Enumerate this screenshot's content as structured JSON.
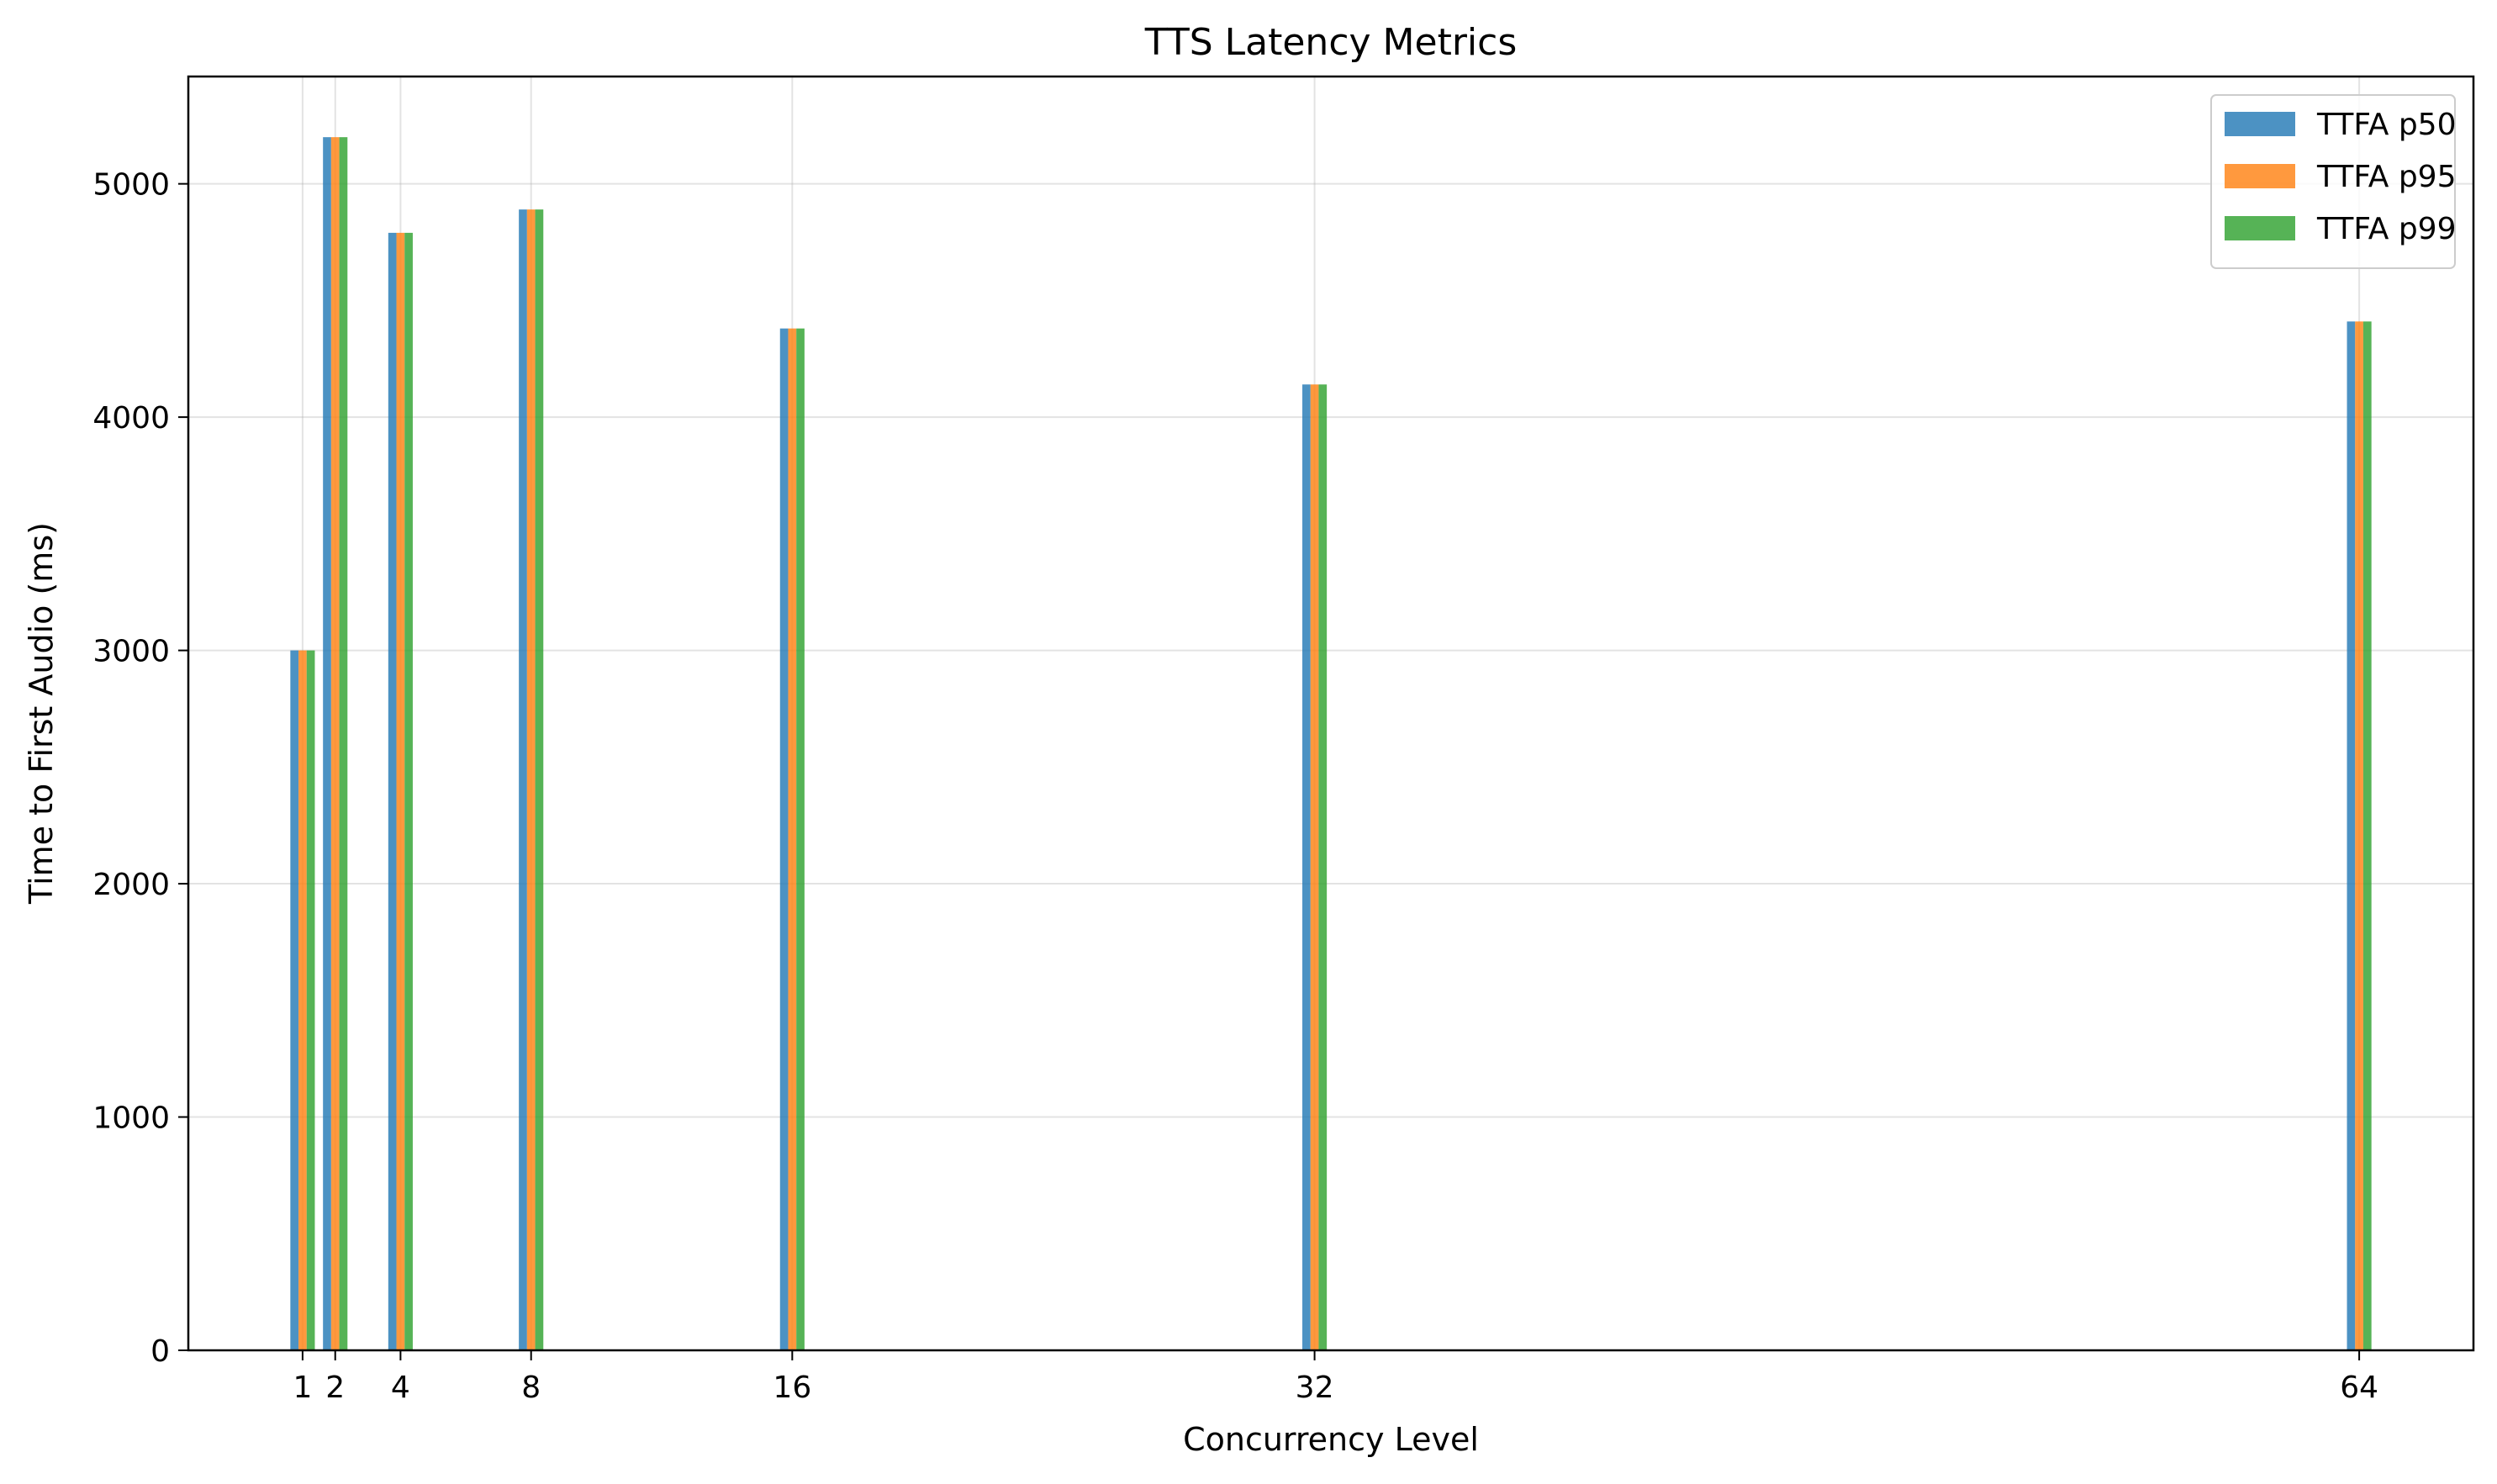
{
  "chart_data": {
    "type": "bar",
    "title": "TTS Latency Metrics",
    "xlabel": "Concurrency Level",
    "ylabel": "Time to First Audio (ms)",
    "x": [
      1,
      2,
      4,
      8,
      16,
      32,
      64
    ],
    "xticks": [
      1,
      2,
      4,
      8,
      16,
      32,
      64
    ],
    "xlim": [
      -2.5,
      67.5
    ],
    "ylim": [
      0,
      5460
    ],
    "yticks": [
      0,
      1000,
      2000,
      3000,
      4000,
      5000
    ],
    "grid": true,
    "legend_position": "top-right",
    "series": [
      {
        "name": "TTFA p50",
        "color": "#1f77b4",
        "values": [
          3000,
          5200,
          4790,
          4890,
          4380,
          4140,
          4410
        ]
      },
      {
        "name": "TTFA p95",
        "color": "#ff7f0e",
        "values": [
          3000,
          5200,
          4790,
          4890,
          4380,
          4140,
          4410
        ]
      },
      {
        "name": "TTFA p99",
        "color": "#2ca02c",
        "values": [
          3000,
          5200,
          4790,
          4890,
          4380,
          4140,
          4410
        ]
      }
    ]
  }
}
